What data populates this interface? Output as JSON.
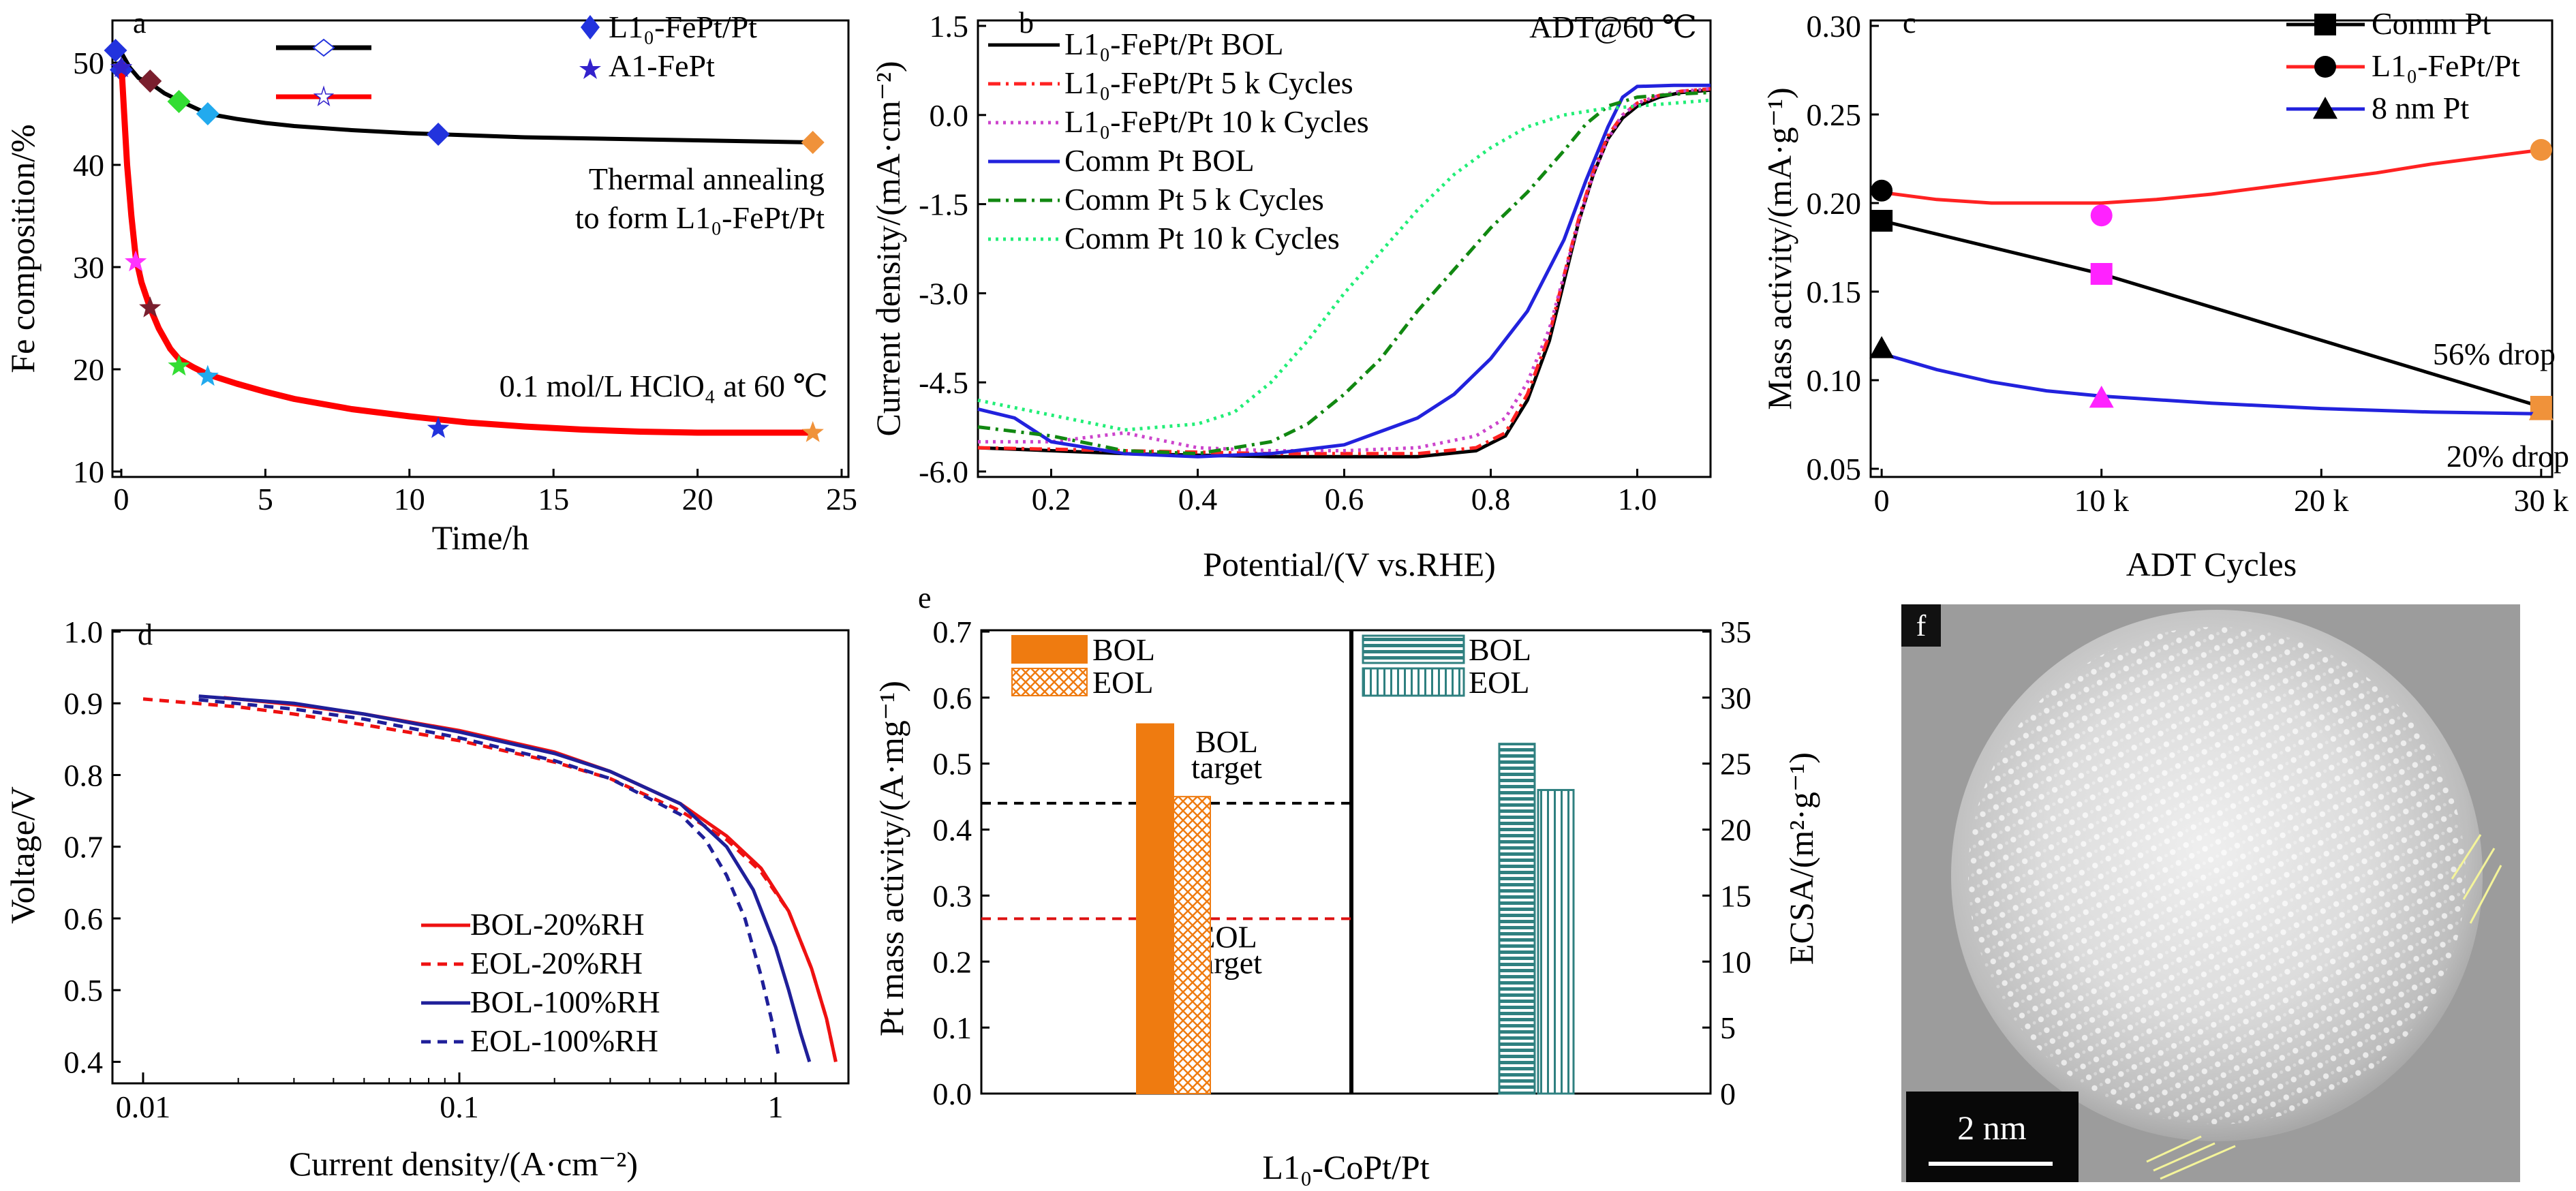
{
  "figure": {
    "panel_labels": [
      "a",
      "b",
      "c",
      "d",
      "e",
      "f"
    ]
  },
  "chart_data": [
    {
      "panel": "a",
      "type": "scatter",
      "xlabel": "Time/h",
      "ylabel": "Fe composition/%",
      "xlim": [
        0,
        25
      ],
      "ylim": [
        10,
        52
      ],
      "xticks": [
        0,
        5,
        10,
        15,
        20,
        25
      ],
      "yticks": [
        10,
        20,
        30,
        40,
        50
      ],
      "legend_position": "top-right",
      "series": [
        {
          "name": "L1₀-FePt/Pt",
          "marker": "diamond",
          "line_color": "#000000",
          "curve_x": [
            0,
            0.3,
            0.6,
            1,
            1.5,
            2,
            3,
            4,
            5,
            6,
            8,
            10,
            12,
            14,
            16,
            18,
            20,
            22,
            24
          ],
          "curve_y": [
            51,
            49.5,
            48.5,
            48,
            47,
            46.3,
            45,
            44.5,
            44.1,
            43.8,
            43.4,
            43.1,
            42.9,
            42.7,
            42.6,
            42.5,
            42.4,
            42.3,
            42.2
          ],
          "points": [
            {
              "x": -0.2,
              "y": 51.2,
              "color": "#2233dd"
            },
            {
              "x": 0,
              "y": 49.3,
              "color": "#2233dd"
            },
            {
              "x": 1,
              "y": 48.2,
              "color": "#7a1f2e"
            },
            {
              "x": 2,
              "y": 46.2,
              "color": "#33dd33"
            },
            {
              "x": 3,
              "y": 45.0,
              "color": "#22aaee"
            },
            {
              "x": 11,
              "y": 43.0,
              "color": "#2233dd"
            },
            {
              "x": 24,
              "y": 42.2,
              "color": "#f0923a"
            }
          ]
        },
        {
          "name": "A1-FePt",
          "marker": "star",
          "line_color": "#ff0000",
          "curve_x": [
            0,
            0.1,
            0.2,
            0.35,
            0.5,
            0.7,
            1,
            1.3,
            1.7,
            2,
            2.5,
            3,
            4,
            5,
            6,
            8,
            10,
            12,
            14,
            16,
            18,
            20,
            22,
            24
          ],
          "curve_y": [
            50,
            45,
            40,
            35,
            31,
            28.5,
            26,
            24,
            22,
            21,
            20.2,
            19.5,
            18.6,
            17.8,
            17.1,
            16.1,
            15.4,
            14.8,
            14.4,
            14.1,
            13.9,
            13.8,
            13.8,
            13.8
          ],
          "points": [
            {
              "x": 0,
              "y": 49.5,
              "color": "#3322cc"
            },
            {
              "x": 0.5,
              "y": 30.5,
              "color": "#ff33ff"
            },
            {
              "x": 1,
              "y": 26.0,
              "color": "#7a1f2e"
            },
            {
              "x": 2,
              "y": 20.3,
              "color": "#33dd33"
            },
            {
              "x": 3,
              "y": 19.3,
              "color": "#22aaee"
            },
            {
              "x": 11,
              "y": 14.2,
              "color": "#2233dd"
            },
            {
              "x": 24,
              "y": 13.8,
              "color": "#f0923a"
            }
          ]
        }
      ],
      "annotations": [
        {
          "text": "Thermal annealing",
          "anchor": "mid-right"
        },
        {
          "text": "to form L1₀-FePt/Pt",
          "anchor": "mid-right"
        },
        {
          "text": "0.1 mol/L HClO₄ at 60 ℃",
          "anchor": "lower-right"
        }
      ]
    },
    {
      "panel": "b",
      "type": "line",
      "xlabel": "Potential/(V vs.RHE)",
      "ylabel": "Current density/(mA·cm⁻²)",
      "xlim": [
        0.1,
        1.1
      ],
      "ylim": [
        -6.0,
        1.5
      ],
      "xticks": [
        0.2,
        0.4,
        0.6,
        0.8,
        1.0
      ],
      "xtick_labels": [
        "0.2",
        "0.4",
        "0.6",
        "0.8",
        "1.0"
      ],
      "yticks": [
        1.5,
        0.0,
        -1.5,
        -3.0,
        -4.5,
        -6.0
      ],
      "ytick_labels": [
        "1.5",
        "0.0",
        "-1.5",
        "-3.0",
        "-4.5",
        "-6.0"
      ],
      "legend_position": "top-left",
      "annotation": "ADT@60 ℃",
      "series": [
        {
          "name": "L1₀-FePt/Pt BOL",
          "color": "#000000",
          "dash": "solid",
          "x": [
            0.1,
            0.3,
            0.5,
            0.7,
            0.78,
            0.82,
            0.85,
            0.88,
            0.9,
            0.92,
            0.94,
            0.96,
            0.98,
            1.0,
            1.03,
            1.06,
            1.1
          ],
          "y": [
            -5.6,
            -5.7,
            -5.75,
            -5.75,
            -5.65,
            -5.4,
            -4.8,
            -3.8,
            -2.8,
            -1.8,
            -1.0,
            -0.4,
            -0.05,
            0.15,
            0.3,
            0.38,
            0.42
          ]
        },
        {
          "name": "L1₀-FePt/Pt 5 k Cycles",
          "color": "#ff2222",
          "dash": "dashdot",
          "x": [
            0.1,
            0.3,
            0.5,
            0.7,
            0.78,
            0.82,
            0.85,
            0.88,
            0.9,
            0.92,
            0.94,
            0.96,
            0.98,
            1.0,
            1.03,
            1.06,
            1.1
          ],
          "y": [
            -5.6,
            -5.65,
            -5.7,
            -5.7,
            -5.6,
            -5.35,
            -4.7,
            -3.7,
            -2.7,
            -1.75,
            -0.95,
            -0.35,
            0.0,
            0.2,
            0.33,
            0.4,
            0.44
          ]
        },
        {
          "name": "L1₀-FePt/Pt 10 k Cycles",
          "color": "#cc44cc",
          "dash": "dotted",
          "x": [
            0.1,
            0.2,
            0.3,
            0.4,
            0.5,
            0.6,
            0.7,
            0.78,
            0.82,
            0.85,
            0.88,
            0.9,
            0.92,
            0.94,
            0.96,
            0.98,
            1.0,
            1.03,
            1.06,
            1.1
          ],
          "y": [
            -5.5,
            -5.5,
            -5.35,
            -5.6,
            -5.65,
            -5.65,
            -5.6,
            -5.4,
            -5.1,
            -4.5,
            -3.6,
            -2.7,
            -1.8,
            -1.0,
            -0.4,
            0.0,
            0.2,
            0.33,
            0.4,
            0.44
          ]
        },
        {
          "name": "Comm Pt BOL",
          "color": "#2222dd",
          "dash": "solid",
          "x": [
            0.1,
            0.15,
            0.2,
            0.3,
            0.4,
            0.5,
            0.6,
            0.7,
            0.75,
            0.8,
            0.85,
            0.9,
            0.93,
            0.96,
            0.98,
            1.0,
            1.05,
            1.1
          ],
          "y": [
            -4.95,
            -5.1,
            -5.5,
            -5.7,
            -5.75,
            -5.7,
            -5.55,
            -5.1,
            -4.7,
            -4.1,
            -3.3,
            -2.1,
            -1.1,
            -0.2,
            0.3,
            0.48,
            0.5,
            0.5
          ]
        },
        {
          "name": "Comm Pt 5 k Cycles",
          "color": "#118811",
          "dash": "dashdot",
          "x": [
            0.1,
            0.2,
            0.3,
            0.4,
            0.5,
            0.55,
            0.6,
            0.65,
            0.7,
            0.75,
            0.8,
            0.85,
            0.9,
            0.93,
            0.96,
            1.0,
            1.05,
            1.1
          ],
          "y": [
            -5.25,
            -5.4,
            -5.65,
            -5.7,
            -5.5,
            -5.2,
            -4.7,
            -4.1,
            -3.3,
            -2.6,
            -1.9,
            -1.3,
            -0.6,
            -0.15,
            0.15,
            0.3,
            0.35,
            0.38
          ]
        },
        {
          "name": "Comm Pt 10 k Cycles",
          "color": "#22ee77",
          "dash": "dotted",
          "x": [
            0.1,
            0.2,
            0.3,
            0.4,
            0.45,
            0.5,
            0.55,
            0.6,
            0.65,
            0.7,
            0.75,
            0.8,
            0.85,
            0.9,
            0.95,
            1.0,
            1.05,
            1.1
          ],
          "y": [
            -4.8,
            -5.05,
            -5.3,
            -5.2,
            -5.0,
            -4.5,
            -3.8,
            -3.0,
            -2.3,
            -1.6,
            -1.0,
            -0.55,
            -0.2,
            0.0,
            0.1,
            0.15,
            0.2,
            0.25
          ]
        }
      ]
    },
    {
      "panel": "c",
      "type": "line",
      "xlabel": "ADT Cycles",
      "ylabel": "Mass activity/(mA·g⁻¹)",
      "x_categories": [
        "0",
        "10 k",
        "20 k",
        "30 k"
      ],
      "x_values": [
        0,
        10,
        20,
        30
      ],
      "xlim": [
        -0.5,
        30.5
      ],
      "ylim": [
        0.05,
        0.3
      ],
      "yticks": [
        0.05,
        0.1,
        0.15,
        0.2,
        0.25,
        0.3
      ],
      "ytick_labels": [
        "0.05",
        "0.10",
        "0.15",
        "0.20",
        "0.25",
        "0.30"
      ],
      "legend_position": "top-right",
      "series": [
        {
          "name": "Comm Pt",
          "marker": "square",
          "color": "#000000",
          "x": [
            0,
            10,
            30
          ],
          "y": [
            0.19,
            0.16,
            0.085
          ],
          "point_colors": [
            "#000000",
            "#ff22ff",
            "#f0923a"
          ]
        },
        {
          "name": "L1₀-FePt/Pt",
          "marker": "circle",
          "color": "#ff2222",
          "x": [
            0,
            10,
            30
          ],
          "y": [
            0.207,
            0.193,
            0.23
          ],
          "curve_x": [
            0,
            2.5,
            5,
            7.5,
            10,
            12.5,
            15,
            17.5,
            20,
            22.5,
            25,
            27.5,
            30
          ],
          "curve_y": [
            0.206,
            0.202,
            0.2,
            0.2,
            0.2,
            0.202,
            0.205,
            0.209,
            0.213,
            0.217,
            0.222,
            0.226,
            0.23
          ],
          "point_colors": [
            "#000000",
            "#ff22ff",
            "#f0923a"
          ]
        },
        {
          "name": "8 nm Pt",
          "marker": "triangle",
          "color": "#2222dd",
          "x": [
            0,
            10,
            30
          ],
          "y": [
            0.118,
            0.09,
            0.083
          ],
          "curve_x": [
            0,
            2.5,
            5,
            7.5,
            10,
            15,
            20,
            25,
            30
          ],
          "curve_y": [
            0.115,
            0.106,
            0.099,
            0.094,
            0.091,
            0.087,
            0.084,
            0.082,
            0.081
          ],
          "point_colors": [
            "#000000",
            "#ff22ff",
            "#f0923a"
          ]
        }
      ],
      "annotations": [
        {
          "text": "56% drop",
          "anchor": "right"
        },
        {
          "text": "20% drop",
          "anchor": "bottom-right"
        }
      ]
    },
    {
      "panel": "d",
      "type": "line",
      "xlabel": "Current density/(A·cm⁻²)",
      "ylabel": "Voltage/V",
      "x_scale": "log",
      "xlim": [
        0.008,
        1.7
      ],
      "ylim": [
        0.37,
        1.0
      ],
      "xticks": [
        0.01,
        0.1,
        1
      ],
      "xtick_labels": [
        "0.01",
        "0.1",
        "1"
      ],
      "yticks": [
        0.4,
        0.5,
        0.6,
        0.7,
        0.8,
        0.9,
        1.0
      ],
      "ytick_labels": [
        "0.4",
        "0.5",
        "0.6",
        "0.7",
        "0.8",
        "0.9",
        "1.0"
      ],
      "legend_position": "bottom-left",
      "series": [
        {
          "name": "BOL-20%RH",
          "color": "#ee1111",
          "dash": "solid",
          "x": [
            0.018,
            0.03,
            0.05,
            0.1,
            0.2,
            0.3,
            0.5,
            0.7,
            0.9,
            1.1,
            1.3,
            1.45,
            1.55
          ],
          "y": [
            0.908,
            0.898,
            0.885,
            0.862,
            0.832,
            0.805,
            0.76,
            0.715,
            0.67,
            0.61,
            0.53,
            0.46,
            0.4
          ]
        },
        {
          "name": "EOL-20%RH",
          "color": "#ee1111",
          "dash": "dashed",
          "x": [
            0.01,
            0.02,
            0.03,
            0.05,
            0.1,
            0.2,
            0.3,
            0.5,
            0.7,
            0.9,
            1.1,
            1.3,
            1.45,
            1.55
          ],
          "y": [
            0.906,
            0.895,
            0.885,
            0.87,
            0.848,
            0.818,
            0.795,
            0.75,
            0.71,
            0.665,
            0.61,
            0.53,
            0.46,
            0.4
          ]
        },
        {
          "name": "BOL-100%RH",
          "color": "#1f1f99",
          "dash": "solid",
          "x": [
            0.015,
            0.03,
            0.05,
            0.1,
            0.2,
            0.3,
            0.5,
            0.7,
            0.85,
            1.0,
            1.1,
            1.2,
            1.28
          ],
          "y": [
            0.91,
            0.9,
            0.885,
            0.86,
            0.83,
            0.805,
            0.76,
            0.7,
            0.64,
            0.56,
            0.5,
            0.44,
            0.4
          ]
        },
        {
          "name": "EOL-100%RH",
          "color": "#1f1f99",
          "dash": "dashed",
          "x": [
            0.015,
            0.03,
            0.05,
            0.1,
            0.2,
            0.3,
            0.5,
            0.6,
            0.7,
            0.8,
            0.9,
            0.97,
            1.02
          ],
          "y": [
            0.905,
            0.892,
            0.878,
            0.852,
            0.82,
            0.795,
            0.745,
            0.71,
            0.66,
            0.6,
            0.52,
            0.46,
            0.41
          ]
        }
      ]
    },
    {
      "panel": "e",
      "type": "bar",
      "xlabel": "L1₀-CoPt/Pt",
      "ylabel": "Pt mass activity/(A·mg⁻¹)",
      "y2label": "ECSA/(m²·g⁻¹)",
      "ylim": [
        0.0,
        0.7
      ],
      "y2lim": [
        0,
        35
      ],
      "yticks": [
        0.0,
        0.1,
        0.2,
        0.3,
        0.4,
        0.5,
        0.6,
        0.7
      ],
      "ytick_labels": [
        "0.0",
        "0.1",
        "0.2",
        "0.3",
        "0.4",
        "0.5",
        "0.6",
        "0.7"
      ],
      "y2ticks": [
        0,
        5,
        10,
        15,
        20,
        25,
        30,
        35
      ],
      "legend_position": "top",
      "mass_activity": [
        {
          "name": "BOL",
          "value": 0.56,
          "color": "#ef7b10",
          "pattern": "solid"
        },
        {
          "name": "EOL",
          "value": 0.45,
          "color": "#ef7b10",
          "pattern": "crosshatch"
        }
      ],
      "ecsa": [
        {
          "name": "BOL",
          "value": 26.5,
          "color": "#2f8080",
          "pattern": "horizontal-lines"
        },
        {
          "name": "EOL",
          "value": 23.0,
          "color": "#2f8080",
          "pattern": "vertical-lines"
        }
      ],
      "targets": [
        {
          "label_line1": "BOL",
          "label_line2": "target",
          "value": 0.44,
          "color": "#000000"
        },
        {
          "label_line1": "EOL",
          "label_line2": "target",
          "value": 0.265,
          "color": "#dd1111"
        }
      ]
    }
  ],
  "panel_f": {
    "kind": "micrograph",
    "scale_bar": "2 nm"
  }
}
